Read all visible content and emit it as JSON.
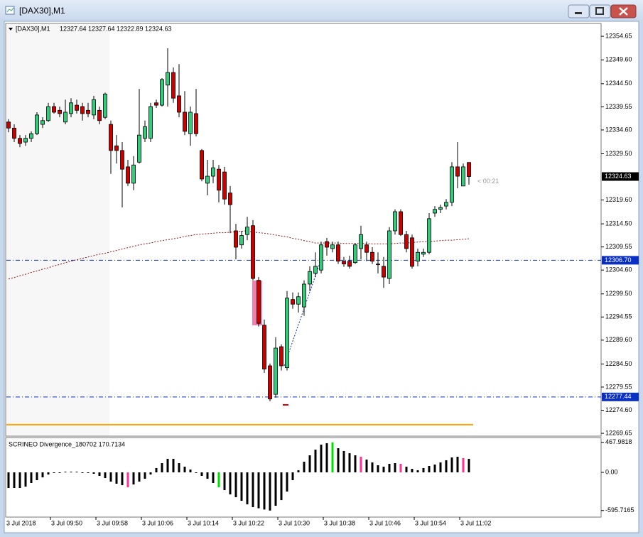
{
  "window": {
    "title": "[DAX30],M1"
  },
  "chart_data": [
    {
      "type": "candlestick",
      "symbol": "[DAX30],M1",
      "open": [
        12336.3,
        12335.0,
        12332.8,
        12332.0,
        12332.8,
        12333.8,
        12335.8,
        12336.6,
        12339.6,
        12338.8,
        12336.3,
        12338.1,
        12339.9,
        12339.6,
        12338.8,
        12337.8,
        12338.8,
        12337.3,
        12335.8,
        12331.2,
        12330.2,
        12326.7,
        12323.2,
        12327.7,
        12332.8,
        12332.8,
        12340.4,
        12339.9,
        12344.2,
        12346.9,
        12341.9,
        12338.4,
        12333.8,
        12338.1,
        12330.2,
        12323.2,
        12324.7,
        12326.2,
        12325.6,
        12321.1,
        12313.0,
        12310.0,
        12312.2,
        12314.1,
        12302.4,
        12292.8,
        12284.1,
        12278.0,
        12288.2,
        12283.7,
        12298.3,
        12297.3,
        12296.7,
        12301.6,
        12303.9,
        12304.6,
        12310.7,
        12309.2,
        12310.0,
        12306.5,
        12306.5,
        12306.2,
        12309.2,
        12310.0,
        12308.4,
        12305.9,
        12305.4,
        12302.8,
        12313.0,
        12317.1,
        12312.2,
        12311.5,
        12306.5,
        12308.0,
        12308.4,
        12316.8,
        12317.6,
        12318.3,
        12319.1,
        12326.7,
        12322.6,
        12327.64
      ],
      "high": [
        12336.9,
        12335.8,
        12333.5,
        12333.5,
        12334.3,
        12338.4,
        12337.3,
        12340.4,
        12340.4,
        12339.6,
        12341.1,
        12341.4,
        12341.1,
        12340.4,
        12340.4,
        12341.9,
        12339.6,
        12342.6,
        12336.6,
        12333.5,
        12332.0,
        12328.2,
        12329.0,
        12343.4,
        12336.6,
        12340.4,
        12341.1,
        12345.7,
        12352.1,
        12348.0,
        12348.7,
        12342.9,
        12339.6,
        12343.4,
        12330.5,
        12328.2,
        12328.2,
        12327.1,
        12326.7,
        12322.6,
        12314.5,
        12313.0,
        12316.0,
        12315.3,
        12303.1,
        12294.0,
        12284.6,
        12290.2,
        12288.7,
        12300.1,
        12299.8,
        12299.8,
        12302.4,
        12305.4,
        12308.4,
        12310.7,
        12311.5,
        12310.7,
        12310.7,
        12307.4,
        12307.7,
        12310.4,
        12314.1,
        12310.7,
        12309.5,
        12308.4,
        12307.4,
        12313.8,
        12317.6,
        12317.6,
        12313.0,
        12312.2,
        12309.2,
        12309.2,
        12316.8,
        12318.3,
        12318.6,
        12319.8,
        12327.7,
        12332.0,
        12327.4,
        12327.64
      ],
      "low": [
        12334.1,
        12332.0,
        12330.9,
        12331.2,
        12332.0,
        12333.5,
        12335.0,
        12336.3,
        12338.1,
        12337.3,
        12335.8,
        12337.3,
        12338.1,
        12336.6,
        12337.3,
        12336.9,
        12335.8,
        12336.9,
        12325.2,
        12327.4,
        12318.0,
        12322.6,
        12321.7,
        12327.4,
        12332.0,
        12332.0,
        12339.3,
        12339.6,
        12339.6,
        12340.4,
        12337.3,
        12333.5,
        12331.2,
        12333.2,
        12323.6,
        12320.6,
        12323.2,
        12319.1,
        12318.6,
        12312.5,
        12306.9,
        12309.2,
        12311.0,
        12302.4,
        12292.5,
        12282.6,
        12276.5,
        12277.3,
        12283.1,
        12283.1,
        12296.3,
        12295.5,
        12294.8,
        12300.1,
        12303.1,
        12303.9,
        12307.7,
        12308.4,
        12305.9,
        12305.3,
        12304.9,
        12305.9,
        12306.9,
        12306.5,
        12305.9,
        12303.9,
        12300.8,
        12301.6,
        12312.2,
        12311.9,
        12308.4,
        12304.9,
        12305.4,
        12307.4,
        12308.0,
        12316.0,
        12316.8,
        12317.6,
        12318.3,
        12322.1,
        12322.6,
        12322.89
      ],
      "close": [
        12335.0,
        12332.8,
        12331.7,
        12332.8,
        12333.8,
        12337.8,
        12336.6,
        12339.6,
        12338.4,
        12338.1,
        12338.4,
        12340.4,
        12338.8,
        12338.1,
        12338.1,
        12341.1,
        12336.6,
        12342.3,
        12330.2,
        12330.2,
        12326.2,
        12323.2,
        12327.1,
        12333.5,
        12335.3,
        12339.6,
        12339.9,
        12345.4,
        12346.9,
        12341.4,
        12338.4,
        12334.3,
        12338.4,
        12333.8,
        12324.1,
        12324.7,
        12326.5,
        12321.7,
        12319.8,
        12318.6,
        12309.5,
        12312.0,
        12313.8,
        12302.8,
        12293.2,
        12283.4,
        12277.0,
        12287.9,
        12284.1,
        12298.6,
        12297.3,
        12298.9,
        12301.6,
        12304.3,
        12305.4,
        12310.0,
        12309.5,
        12310.0,
        12306.5,
        12305.9,
        12305.4,
        12310.0,
        12312.2,
        12308.4,
        12306.5,
        12305.8,
        12303.1,
        12313.0,
        12317.1,
        12312.2,
        12309.2,
        12305.4,
        12308.4,
        12308.4,
        12315.6,
        12317.6,
        12318.0,
        12319.1,
        12326.7,
        12324.7,
        12326.7,
        12324.63
      ],
      "up_color": "#37c87a",
      "down_color": "#c80000",
      "moving_average": {
        "color": "#8b1a1a",
        "values": [
          12302.7,
          12303.0,
          12303.4,
          12303.7,
          12304.1,
          12304.4,
          12304.8,
          12305.1,
          12305.5,
          12305.8,
          12306.2,
          12306.5,
          12306.8,
          12307.1,
          12307.4,
          12307.7,
          12308.0,
          12308.2,
          12308.5,
          12308.8,
          12309.1,
          12309.4,
          12309.7,
          12310.0,
          12310.2,
          12310.4,
          12310.7,
          12310.9,
          12311.1,
          12311.3,
          12311.5,
          12311.8,
          12312.0,
          12312.2,
          12312.3,
          12312.4,
          12312.5,
          12312.6,
          12312.6,
          12312.7,
          12312.8,
          12312.9,
          12313.0,
          12312.8,
          12312.6,
          12312.5,
          12312.3,
          12312.1,
          12311.9,
          12311.7,
          12311.4,
          12311.2,
          12310.9,
          12310.7,
          12310.4,
          12310.4,
          12310.4,
          12310.4,
          12310.4,
          12310.3,
          12310.3,
          12310.3,
          12310.3,
          12310.3,
          12310.2,
          12310.2,
          12310.2,
          12310.2,
          12310.3,
          12310.4,
          12310.4,
          12310.5,
          12310.6,
          12310.7,
          12310.7,
          12310.8,
          12310.9,
          12311.0,
          12311.0,
          12311.1,
          12311.2,
          12311.3
        ]
      },
      "hline": {
        "value": 12271.5,
        "color": "#ffa500"
      },
      "levels": [
        {
          "value": 12306.7,
          "label": "12306.70"
        },
        12277.44
      ],
      "level_color": "#0a2fc4",
      "countdown": "< 00:21",
      "ylim": [
        12269.2,
        12357.4
      ],
      "yticks": [
        12354.65,
        {
          "value": 12349.6,
          "label": "12349.60"
        },
        {
          "value": 12344.5,
          "label": "12344.50"
        },
        12339.55,
        {
          "value": 12334.6,
          "label": "12334.60"
        },
        {
          "value": 12329.5,
          "label": "12329.50"
        },
        {
          "value": 12319.6,
          "label": "12319.60"
        },
        {
          "value": 12314.5,
          "label": "12314.50"
        },
        12309.55,
        {
          "value": 12304.6,
          "label": "12304.60"
        },
        {
          "value": 12299.5,
          "label": "12299.50"
        },
        12294.55,
        {
          "value": 12289.6,
          "label": "12289.60"
        },
        {
          "value": 12284.5,
          "label": "12284.50"
        },
        12279.55,
        {
          "value": 12274.6,
          "label": "12274.60"
        },
        12269.65
      ],
      "xticks": [
        "3 Jul 2018",
        "3 Jul 09:50",
        "3 Jul 09:58",
        "3 Jul 10:06",
        "3 Jul 10:14",
        "3 Jul 10:22",
        "3 Jul 10:30",
        "3 Jul 10:38",
        "3 Jul 10:46",
        "3 Jul 10:54",
        "3 Jul 11:02"
      ]
    },
    {
      "type": "histogram",
      "title": "SCRINEO Divergence_180702 170.7134",
      "values": [
        -244,
        -244,
        -244,
        -222,
        -166,
        -122,
        -78,
        -33,
        -11,
        -4,
        11,
        11,
        11,
        -4,
        -11,
        -22,
        -55,
        -89,
        -144,
        -177,
        -200,
        -233,
        -189,
        -144,
        -100,
        -33,
        67,
        144,
        211,
        211,
        144,
        89,
        44,
        -4,
        -55,
        -100,
        -166,
        -233,
        -277,
        -344,
        -388,
        -444,
        -499,
        -543,
        -560,
        -580,
        -595.7165,
        -521,
        -433,
        -299,
        -122,
        33,
        166,
        266,
        355,
        433,
        455,
        467.9818,
        377,
        333,
        299,
        266,
        244,
        200,
        155,
        111,
        89,
        133,
        144,
        133,
        89,
        55,
        33,
        67,
        100,
        122,
        155,
        189,
        233,
        244,
        222,
        211
      ],
      "colors": [
        "#000000",
        "#000000",
        "#000000",
        "#000000",
        "#000000",
        "#000000",
        "#000000",
        "#000000",
        "#000000",
        "#000000",
        "#000000",
        "#000000",
        "#000000",
        "#000000",
        "#000000",
        "#000000",
        "#000000",
        "#000000",
        "#000000",
        "#000000",
        "#000000",
        "#ff3399",
        "#000000",
        "#000000",
        "#000000",
        "#000000",
        "#000000",
        "#000000",
        "#000000",
        "#000000",
        "#000000",
        "#000000",
        "#000000",
        "#000000",
        "#000000",
        "#000000",
        "#000000",
        "#00dd00",
        "#000000",
        "#000000",
        "#000000",
        "#000000",
        "#000000",
        "#000000",
        "#000000",
        "#000000",
        "#000000",
        "#000000",
        "#000000",
        "#000000",
        "#000000",
        "#000000",
        "#000000",
        "#000000",
        "#000000",
        "#000000",
        "#000000",
        "#00dd00",
        "#000000",
        "#000000",
        "#000000",
        "#000000",
        "#ff3399",
        "#000000",
        "#000000",
        "#000000",
        "#000000",
        "#000000",
        "#000000",
        "#ff3399",
        "#000000",
        "#000000",
        "#000000",
        "#000000",
        "#000000",
        "#000000",
        "#000000",
        "#000000",
        "#000000",
        "#000000",
        "#ff3399",
        "#000000"
      ],
      "ylim": [
        -698,
        532
      ],
      "yticks": [
        467.9818,
        {
          "value": 0,
          "label": "0.00"
        },
        -595.7165
      ]
    }
  ]
}
